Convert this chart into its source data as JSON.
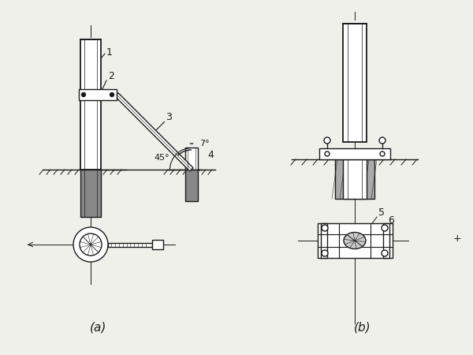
{
  "bg_color": "#f0f0eb",
  "line_color": "#1a1a1a",
  "label_a": "(a)",
  "label_b": "(b)",
  "angle_45": "45°",
  "angle_7": "7°"
}
